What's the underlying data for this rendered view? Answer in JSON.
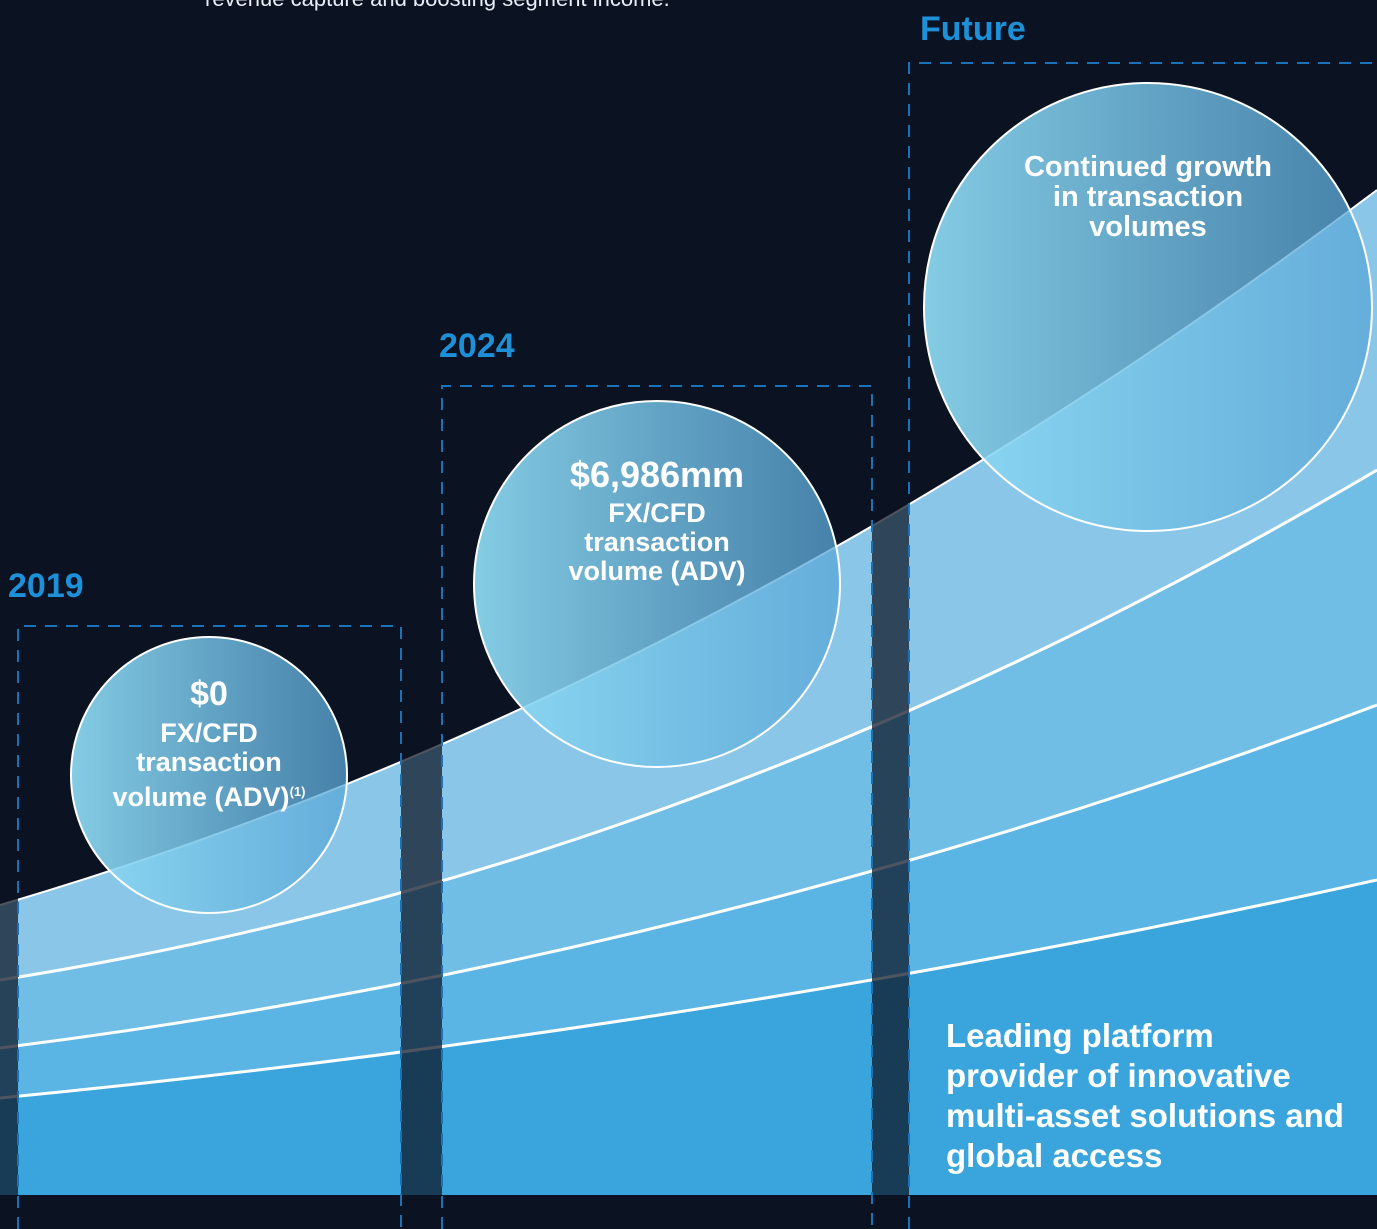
{
  "top_text": "revenue capture and boosting segment income.",
  "columns": [
    {
      "year": "2019",
      "value": "$0",
      "label": "FX/CFD transaction volume (ADV)",
      "note": "(1)"
    },
    {
      "year": "2024",
      "value": "$6,986mm",
      "label": "FX/CFD transaction volume (ADV)"
    },
    {
      "year": "Future",
      "label": "Continued growth in transaction volumes"
    }
  ],
  "footer_text": "Leading platform provider of innovative multi-asset solutions and global access"
}
